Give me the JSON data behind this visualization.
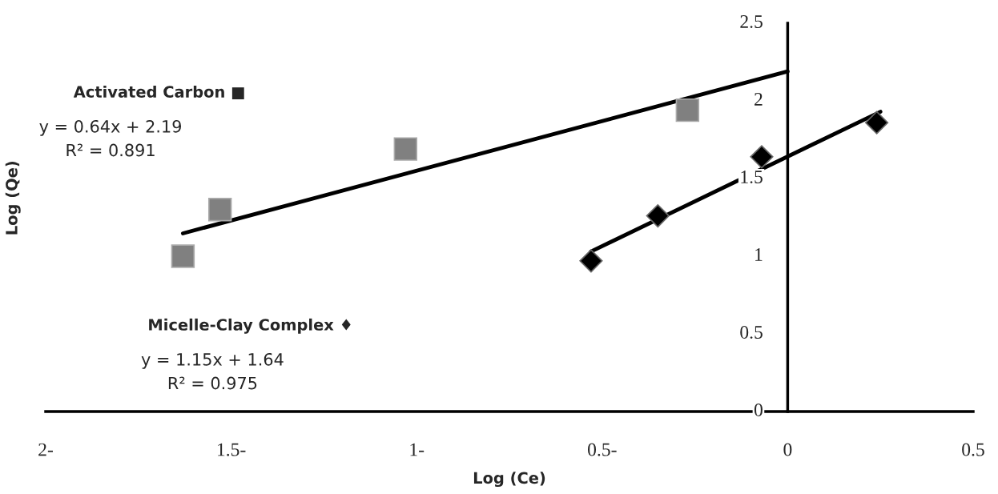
{
  "chart_data": {
    "type": "scatter",
    "xlabel": "Log (Ce)",
    "ylabel": "Log (Qe)",
    "xlim": [
      -2,
      0.5
    ],
    "ylim": [
      0,
      2.5
    ],
    "xticks": [
      {
        "value": -2,
        "label": "2-"
      },
      {
        "value": -1.5,
        "label": "1.5-"
      },
      {
        "value": -1,
        "label": "1-"
      },
      {
        "value": -0.5,
        "label": "0.5-"
      },
      0,
      0.5
    ],
    "yticks": [
      0,
      0.5,
      1,
      1.5,
      2,
      2.5
    ],
    "grid": false,
    "legend": false,
    "series": [
      {
        "type": "scatter",
        "marker": "square",
        "color": "#808080",
        "x": [
          -1.63,
          -1.53,
          -1.03,
          -0.27
        ],
        "values": [
          1.0,
          1.3,
          1.69,
          1.94
        ]
      },
      {
        "type": "scatter",
        "marker": "diamond",
        "color": "#000000",
        "x": [
          -0.53,
          -0.35,
          -0.07,
          0.24
        ],
        "values": [
          0.97,
          1.26,
          1.64,
          1.86
        ]
      },
      {
        "type": "line",
        "color": "#000000",
        "x": [
          -1.63,
          0
        ],
        "values": [
          1.147,
          2.19
        ]
      },
      {
        "type": "line",
        "color": "#000000",
        "x": [
          -0.53,
          0.25
        ],
        "values": [
          1.03,
          1.93
        ]
      }
    ],
    "annotations": [
      "Activated Carbon ■",
      "y = 0.64x + 2.19\nR² = 0.891",
      "Micelle-Clay Complex ♦",
      "y = 1.15x + 1.64\nR² = 0.975"
    ]
  }
}
